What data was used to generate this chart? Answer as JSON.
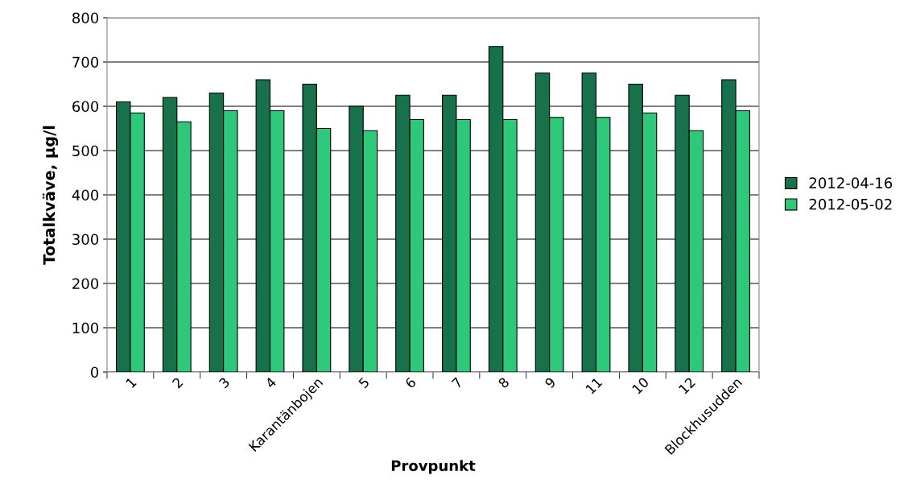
{
  "chart_data": {
    "type": "bar",
    "xlabel": "Provpunkt",
    "ylabel": "Totalkväve, µg/l",
    "categories": [
      "1",
      "2",
      "3",
      "4",
      "Karantänbojen",
      "5",
      "6",
      "7",
      "8",
      "9",
      "11",
      "10",
      "12",
      "Blockhusudden"
    ],
    "series": [
      {
        "name": "2012-04-16",
        "color": "#17714a",
        "values": [
          610,
          620,
          630,
          660,
          650,
          600,
          625,
          625,
          735,
          675,
          675,
          650,
          625,
          660
        ]
      },
      {
        "name": "2012-05-02",
        "color": "#2ec87a",
        "values": [
          585,
          565,
          590,
          590,
          550,
          545,
          570,
          570,
          570,
          575,
          575,
          585,
          545,
          590
        ]
      }
    ],
    "ylim": [
      0,
      800
    ],
    "yticks": [
      0,
      100,
      200,
      300,
      400,
      500,
      600,
      700,
      800
    ],
    "grid": "y",
    "legend": "right"
  }
}
